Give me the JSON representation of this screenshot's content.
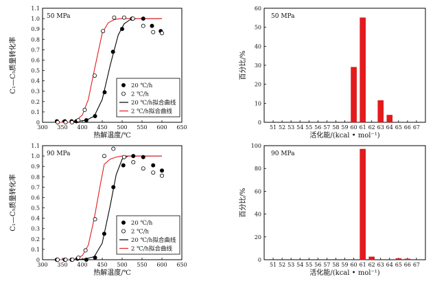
{
  "chart_data": [
    {
      "type": "scatter",
      "panel_label": "50 MPa",
      "xlabel": "热解温度/℃",
      "ylabel": "C₁—C₅质量转化率",
      "xlim": [
        300,
        650
      ],
      "ylim": [
        0,
        1.1
      ],
      "xticks": [
        300,
        350,
        400,
        450,
        500,
        550,
        600,
        650
      ],
      "yticks": [
        0,
        0.1,
        0.2,
        0.3,
        0.4,
        0.5,
        0.6,
        0.7,
        0.8,
        0.9,
        1.0,
        1.1
      ],
      "ytick_labels": [
        "0",
        "0.1",
        "0.2",
        "0.3",
        "0.4",
        "0.5",
        "0.6",
        "0.7",
        "0.8",
        "0.9",
        "1.0",
        "1.1"
      ],
      "series": [
        {
          "name": "20 ℃/h",
          "kind": "filled-points",
          "color": "#000000",
          "x": [
            336,
            356,
            373,
            385,
            410,
            432,
            456,
            477,
            500,
            525,
            553,
            575,
            597
          ],
          "y": [
            0.01,
            0.01,
            0.01,
            0.01,
            0.02,
            0.06,
            0.29,
            0.68,
            0.9,
            1.0,
            1.0,
            0.93,
            0.88
          ]
        },
        {
          "name": "2 ℃/h",
          "kind": "open-points",
          "color": "#000000",
          "x": [
            338,
            358,
            374,
            390,
            406,
            431,
            452,
            480,
            505,
            527,
            553,
            578,
            600
          ],
          "y": [
            0.0,
            0.0,
            0.0,
            0.02,
            0.12,
            0.45,
            0.88,
            1.01,
            1.01,
            1.0,
            0.93,
            0.87,
            0.86
          ]
        },
        {
          "name": "20 ℃/h拟合曲线",
          "kind": "line",
          "color": "#000000",
          "x": [
            335,
            350,
            370,
            390,
            410,
            430,
            450,
            470,
            490,
            505,
            520,
            535,
            550,
            570,
            600
          ],
          "y": [
            0.0,
            0.0,
            0.0,
            0.01,
            0.02,
            0.06,
            0.22,
            0.55,
            0.84,
            0.95,
            0.99,
            1.0,
            1.0,
            1.0,
            1.0
          ]
        },
        {
          "name": "2 ℃/h拟合曲线",
          "kind": "line",
          "color": "#e41a1c",
          "x": [
            335,
            350,
            370,
            385,
            400,
            415,
            430,
            450,
            465,
            480,
            495,
            510,
            530,
            560,
            600
          ],
          "y": [
            0.0,
            0.0,
            0.0,
            0.02,
            0.07,
            0.22,
            0.5,
            0.86,
            0.96,
            0.99,
            1.0,
            1.0,
            1.0,
            1.0,
            1.0
          ]
        }
      ],
      "legend": {
        "position": "bottom-right",
        "entries": [
          "20 ℃/h",
          "2 ℃/h",
          "20 ℃/h拟合曲线",
          "2 ℃/h拟合曲线"
        ]
      }
    },
    {
      "type": "bar",
      "panel_label": "50 MPa",
      "xlabel": "活化能/(kcal • mol⁻¹)",
      "ylabel": "百分比/%",
      "categories": [
        "51",
        "52",
        "53",
        "54",
        "55",
        "56",
        "57",
        "58",
        "59",
        "60",
        "61",
        "62",
        "63",
        "64",
        "65",
        "66",
        "67"
      ],
      "values": [
        0,
        0,
        0,
        0,
        0,
        0,
        0,
        0,
        0,
        29,
        55,
        0,
        11.5,
        3.8,
        0,
        0,
        0
      ],
      "ylim": [
        0,
        60
      ],
      "yticks": [
        0,
        10,
        20,
        30,
        40,
        50,
        60
      ],
      "color": "#e41a1c"
    },
    {
      "type": "scatter",
      "panel_label": "90 MPa",
      "xlabel": "热解温度/℃",
      "ylabel": "C₁—C₅质量转化率",
      "xlim": [
        300,
        650
      ],
      "ylim": [
        0,
        1.1
      ],
      "xticks": [
        300,
        350,
        400,
        450,
        500,
        550,
        600,
        650
      ],
      "yticks": [
        0,
        0.1,
        0.2,
        0.3,
        0.4,
        0.5,
        0.6,
        0.7,
        0.8,
        0.9,
        1.0,
        1.1
      ],
      "ytick_labels": [
        "0",
        "0.1",
        "0.2",
        "0.3",
        "0.4",
        "0.5",
        "0.6",
        "0.7",
        "0.8",
        "0.9",
        "1.0",
        "1.1"
      ],
      "series": [
        {
          "name": "20 ℃/h",
          "kind": "filled-points",
          "color": "#000000",
          "x": [
            336,
            356,
            373,
            388,
            410,
            432,
            455,
            478,
            503,
            528,
            553,
            578,
            600
          ],
          "y": [
            0.0,
            0.0,
            0.0,
            0.01,
            0.0,
            0.02,
            0.25,
            0.7,
            0.91,
            1.0,
            0.99,
            0.91,
            0.86
          ]
        },
        {
          "name": "2 ℃/h",
          "kind": "open-points",
          "color": "#000000",
          "x": [
            338,
            358,
            375,
            390,
            408,
            432,
            455,
            478,
            505,
            528,
            553,
            578,
            600
          ],
          "y": [
            0.0,
            0.0,
            0.0,
            0.02,
            0.09,
            0.39,
            1.0,
            1.07,
            0.99,
            0.94,
            0.88,
            0.84,
            0.81
          ]
        },
        {
          "name": "20 ℃/h拟合曲线",
          "kind": "line",
          "color": "#000000",
          "x": [
            335,
            350,
            370,
            390,
            410,
            430,
            450,
            470,
            485,
            500,
            515,
            530,
            550,
            570,
            600
          ],
          "y": [
            0.0,
            0.0,
            0.0,
            0.0,
            0.01,
            0.03,
            0.16,
            0.52,
            0.82,
            0.97,
            1.0,
            1.0,
            1.0,
            1.0,
            1.0
          ]
        },
        {
          "name": "2 ℃/h拟合曲线",
          "kind": "line",
          "color": "#e41a1c",
          "x": [
            335,
            350,
            370,
            385,
            400,
            415,
            430,
            445,
            455,
            470,
            485,
            500,
            525,
            560,
            600
          ],
          "y": [
            0.0,
            0.0,
            0.0,
            0.01,
            0.04,
            0.14,
            0.4,
            0.72,
            0.92,
            0.97,
            0.99,
            1.0,
            1.0,
            1.0,
            1.0
          ]
        }
      ],
      "legend": {
        "position": "bottom-right",
        "entries": [
          "20 ℃/h",
          "2 ℃/h",
          "20 ℃/h拟合曲线",
          "2 ℃/h拟合曲线"
        ]
      }
    },
    {
      "type": "bar",
      "panel_label": "90 MPa",
      "xlabel": "活化能/(kcal • mol⁻¹)",
      "ylabel": "百分比/%",
      "categories": [
        "51",
        "52",
        "53",
        "54",
        "55",
        "56",
        "57",
        "58",
        "59",
        "60",
        "61",
        "62",
        "63",
        "64",
        "65",
        "66",
        "67"
      ],
      "values": [
        0,
        0,
        0,
        0,
        0,
        0,
        0,
        0,
        0,
        0,
        97,
        2.5,
        0,
        0,
        1.0,
        0.7,
        0
      ],
      "ylim": [
        0,
        100
      ],
      "yticks": [
        0,
        20,
        40,
        60,
        80,
        100
      ],
      "color": "#e41a1c"
    }
  ]
}
